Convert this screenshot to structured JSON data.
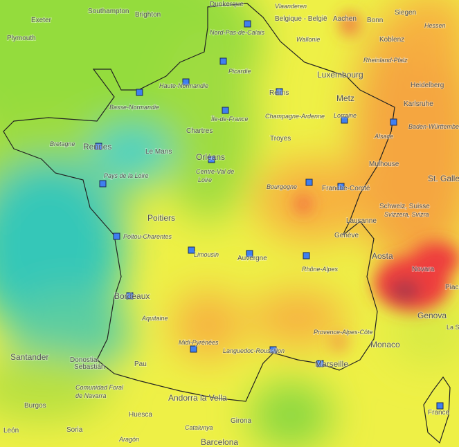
{
  "places": [
    "Dunkerque",
    "Southampton",
    "Brighton",
    "Exeter",
    "Plymouth",
    "Vlaanderen",
    "Belgique - België",
    "Aachen",
    "Bonn",
    "Siegen",
    "Koblenz",
    "Hessen",
    "Nord-Pas-de-Calais",
    "Wallonie",
    "Rheinland-Pfalz",
    "Picardie",
    "Luxembourg",
    "Heidelberg",
    "Haute-Normandie",
    "Reims",
    "Metz",
    "Karlsruhe",
    "Basse-Normandie",
    "Île-de-France",
    "Champagne-Ardenne",
    "Lorraine",
    "Baden-Württemberg",
    "Chartres",
    "Bretagne",
    "Rennes",
    "Le Mans",
    "Troyes",
    "Alsace",
    "Orléans",
    "Mulhouse",
    "Centre-Val de",
    "Loire",
    "Pays de la Loire",
    "Bourgogne",
    "Franche-Comté",
    "St. Gallen",
    "Poitiers",
    "Schweiz, Suisse",
    "Svizzera, Svizra",
    "Lausanne",
    "Poitou-Charentes",
    "Genève",
    "Limousin",
    "Auvergne",
    "Rhône-Alpes",
    "Aosta",
    "Novara",
    "Piace",
    "Bordeaux",
    "Aquitaine",
    "Genova",
    "Provence-Alpes-Côte",
    "Monaco",
    "Midi-Pyrénées",
    "Languedoc-Roussillon",
    "Marseille",
    "Santander",
    "Donostia-",
    "Sebastián",
    "Pau",
    "Comunidad Foral",
    "de Navarra",
    "Andorra la Vella",
    "Burgos",
    "Huesca",
    "Soria",
    "Catalunya",
    "Girona",
    "Barcelona",
    "León",
    "Aragón",
    "La Spezia",
    "France"
  ]
}
